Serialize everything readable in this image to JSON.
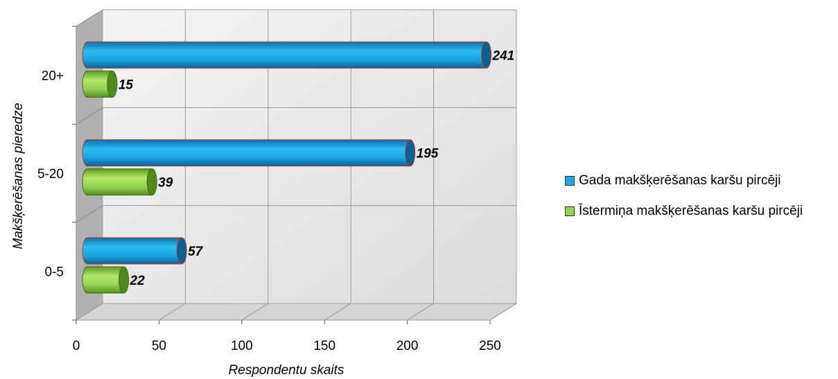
{
  "chart_data": {
    "type": "bar",
    "orientation": "horizontal",
    "categories": [
      "0-5",
      "5-20",
      "20+"
    ],
    "series": [
      {
        "name": "Gada makšķerēšanas karšu pircēji",
        "values": [
          57,
          195,
          241
        ],
        "color": "#1ea7e1"
      },
      {
        "name": "Īstermiņa makšķerēšanas karšu pircēji",
        "values": [
          22,
          39,
          15
        ],
        "color": "#92d050"
      }
    ],
    "xlabel": "Respondentu skaits",
    "ylabel": "Makšķerēšanas pieredze",
    "xlim": [
      0,
      250
    ],
    "xticks": [
      0,
      50,
      100,
      150,
      200,
      250
    ],
    "grid": true,
    "legend_position": "right"
  }
}
